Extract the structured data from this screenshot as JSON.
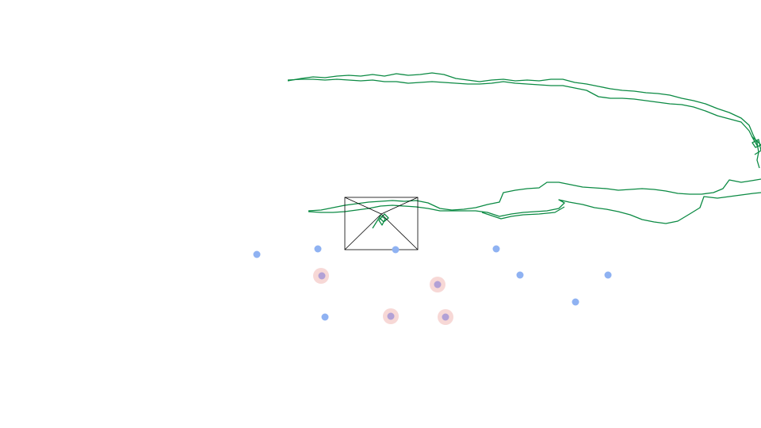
{
  "scene": {
    "background": "#ffffff",
    "trajectory_color": "#0b8a43",
    "frustum_color": "#000000",
    "landmark_color": "#8fb2f2",
    "highlight_color": "#f0b8b4",
    "highlighted_landmark_color": "#b2a1d6"
  }
}
